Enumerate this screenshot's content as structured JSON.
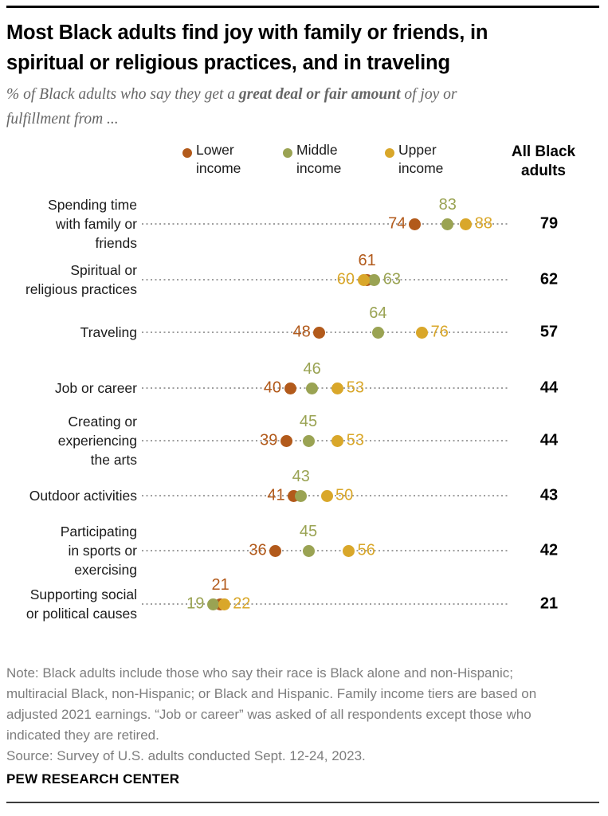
{
  "title": "Most Black adults find joy with family or friends, in\nspiritual or religious practices, and in traveling",
  "subtitle": {
    "pre": "% of Black adults who say they get a ",
    "bold": "great deal or fair amount",
    "post": " of joy or\nfulfillment from ..."
  },
  "legend": {
    "items": [
      {
        "label": "Lower\nincome",
        "color": "#B25A1B"
      },
      {
        "label": "Middle\nincome",
        "color": "#9AA353"
      },
      {
        "label": "Upper\nincome",
        "color": "#D9A72A"
      }
    ],
    "all_header": "All Black\nadults"
  },
  "chart_data": {
    "type": "scatter",
    "variant": "dot-plot",
    "title": "Most Black adults find joy with family or friends, in spiritual or religious practices, and in traveling",
    "subtitle": "% of Black adults who say they get a great deal or fair amount of joy or fulfillment from ...",
    "xlim": [
      0,
      100
    ],
    "axis_visible": false,
    "legend_position": "top",
    "categories": [
      "Spending time\nwith family or\nfriends",
      "Spiritual or\nreligious practices",
      "Traveling",
      "Job or career",
      "Creating or\nexperiencing\nthe arts",
      "Outdoor activities",
      "Participating\nin sports or\nexercising",
      "Supporting social\nor political causes"
    ],
    "series": [
      {
        "name": "Lower income",
        "color": "#B25A1B",
        "values": [
          74,
          61,
          48,
          40,
          39,
          41,
          36,
          21
        ]
      },
      {
        "name": "Middle income",
        "color": "#9AA353",
        "values": [
          83,
          63,
          64,
          46,
          45,
          43,
          45,
          19
        ]
      },
      {
        "name": "Upper income",
        "color": "#D9A72A",
        "values": [
          88,
          60,
          76,
          53,
          53,
          50,
          56,
          22
        ]
      },
      {
        "name": "All Black adults",
        "color": "#000000",
        "values": [
          79,
          62,
          57,
          44,
          44,
          43,
          42,
          21
        ]
      }
    ],
    "line_color": "#9f9f9f"
  },
  "footer": {
    "note": "Note: Black adults include those who say their race is Black alone and non-Hispanic;\nmultiracial Black, non-Hispanic; or Black and Hispanic. Family income tiers are based on\nadjusted 2021 earnings. “Job or career” was asked of all respondents except those who\nindicated they are retired.\nSource: Survey of U.S. adults conducted Sept. 12-24, 2023.",
    "wordmark": "PEW RESEARCH CENTER"
  }
}
